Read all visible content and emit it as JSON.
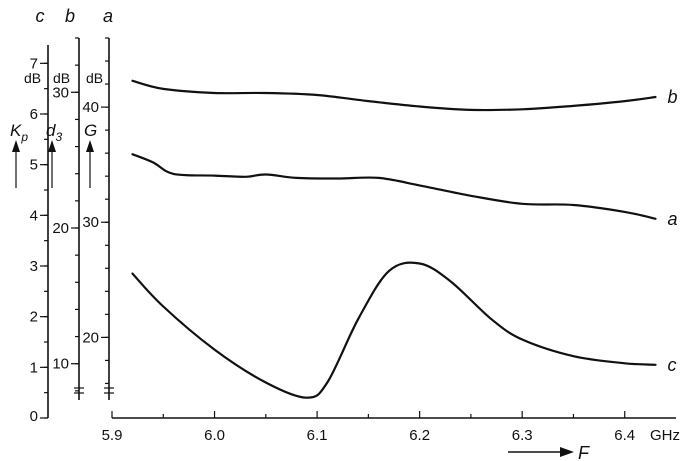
{
  "chart_data": {
    "type": "line",
    "x": {
      "label": "F",
      "unit": "GHz",
      "range": [
        5.9,
        6.45
      ],
      "ticks": [
        "5.9",
        "6.0",
        "6.1",
        "6.2",
        "6.3",
        "6.4"
      ]
    },
    "axes": [
      {
        "letter": "c",
        "symbol": "Kp",
        "unit": "dB",
        "range": [
          0,
          7.5
        ],
        "ticks": [
          "1",
          "2",
          "3",
          "4",
          "5",
          "6",
          "7"
        ],
        "zero_label": "0"
      },
      {
        "letter": "b",
        "symbol": "d3",
        "unit": "dB",
        "range": [
          6,
          34
        ],
        "ticks": [
          "10",
          "20",
          "30"
        ]
      },
      {
        "letter": "a",
        "symbol": "G",
        "unit": "dB",
        "range": [
          13,
          46
        ],
        "ticks": [
          "20",
          "30",
          "40"
        ]
      }
    ],
    "series": [
      {
        "name": "b",
        "axis": 1,
        "x": [
          5.92,
          5.95,
          6.0,
          6.05,
          6.1,
          6.15,
          6.2,
          6.25,
          6.3,
          6.35,
          6.4,
          6.43
        ],
        "y": [
          30.85,
          30.25,
          29.95,
          29.95,
          29.8,
          29.35,
          28.95,
          28.7,
          28.75,
          29.0,
          29.35,
          29.65
        ]
      },
      {
        "name": "a",
        "axis": 2,
        "x": [
          5.92,
          5.94,
          5.96,
          6.0,
          6.03,
          6.05,
          6.08,
          6.12,
          6.16,
          6.2,
          6.25,
          6.3,
          6.35,
          6.4,
          6.43
        ],
        "y": [
          35.9,
          35.2,
          34.2,
          34.05,
          33.95,
          34.15,
          33.85,
          33.8,
          33.85,
          33.2,
          32.3,
          31.6,
          31.5,
          30.9,
          30.3
        ]
      },
      {
        "name": "c",
        "axis": 0,
        "x": [
          5.92,
          5.95,
          6.0,
          6.05,
          6.09,
          6.11,
          6.14,
          6.17,
          6.2,
          6.23,
          6.27,
          6.3,
          6.35,
          6.4,
          6.43
        ],
        "y": [
          2.85,
          2.2,
          1.35,
          0.7,
          0.4,
          0.7,
          1.95,
          2.9,
          3.05,
          2.7,
          1.95,
          1.55,
          1.22,
          1.08,
          1.05
        ]
      }
    ],
    "grid": false
  }
}
